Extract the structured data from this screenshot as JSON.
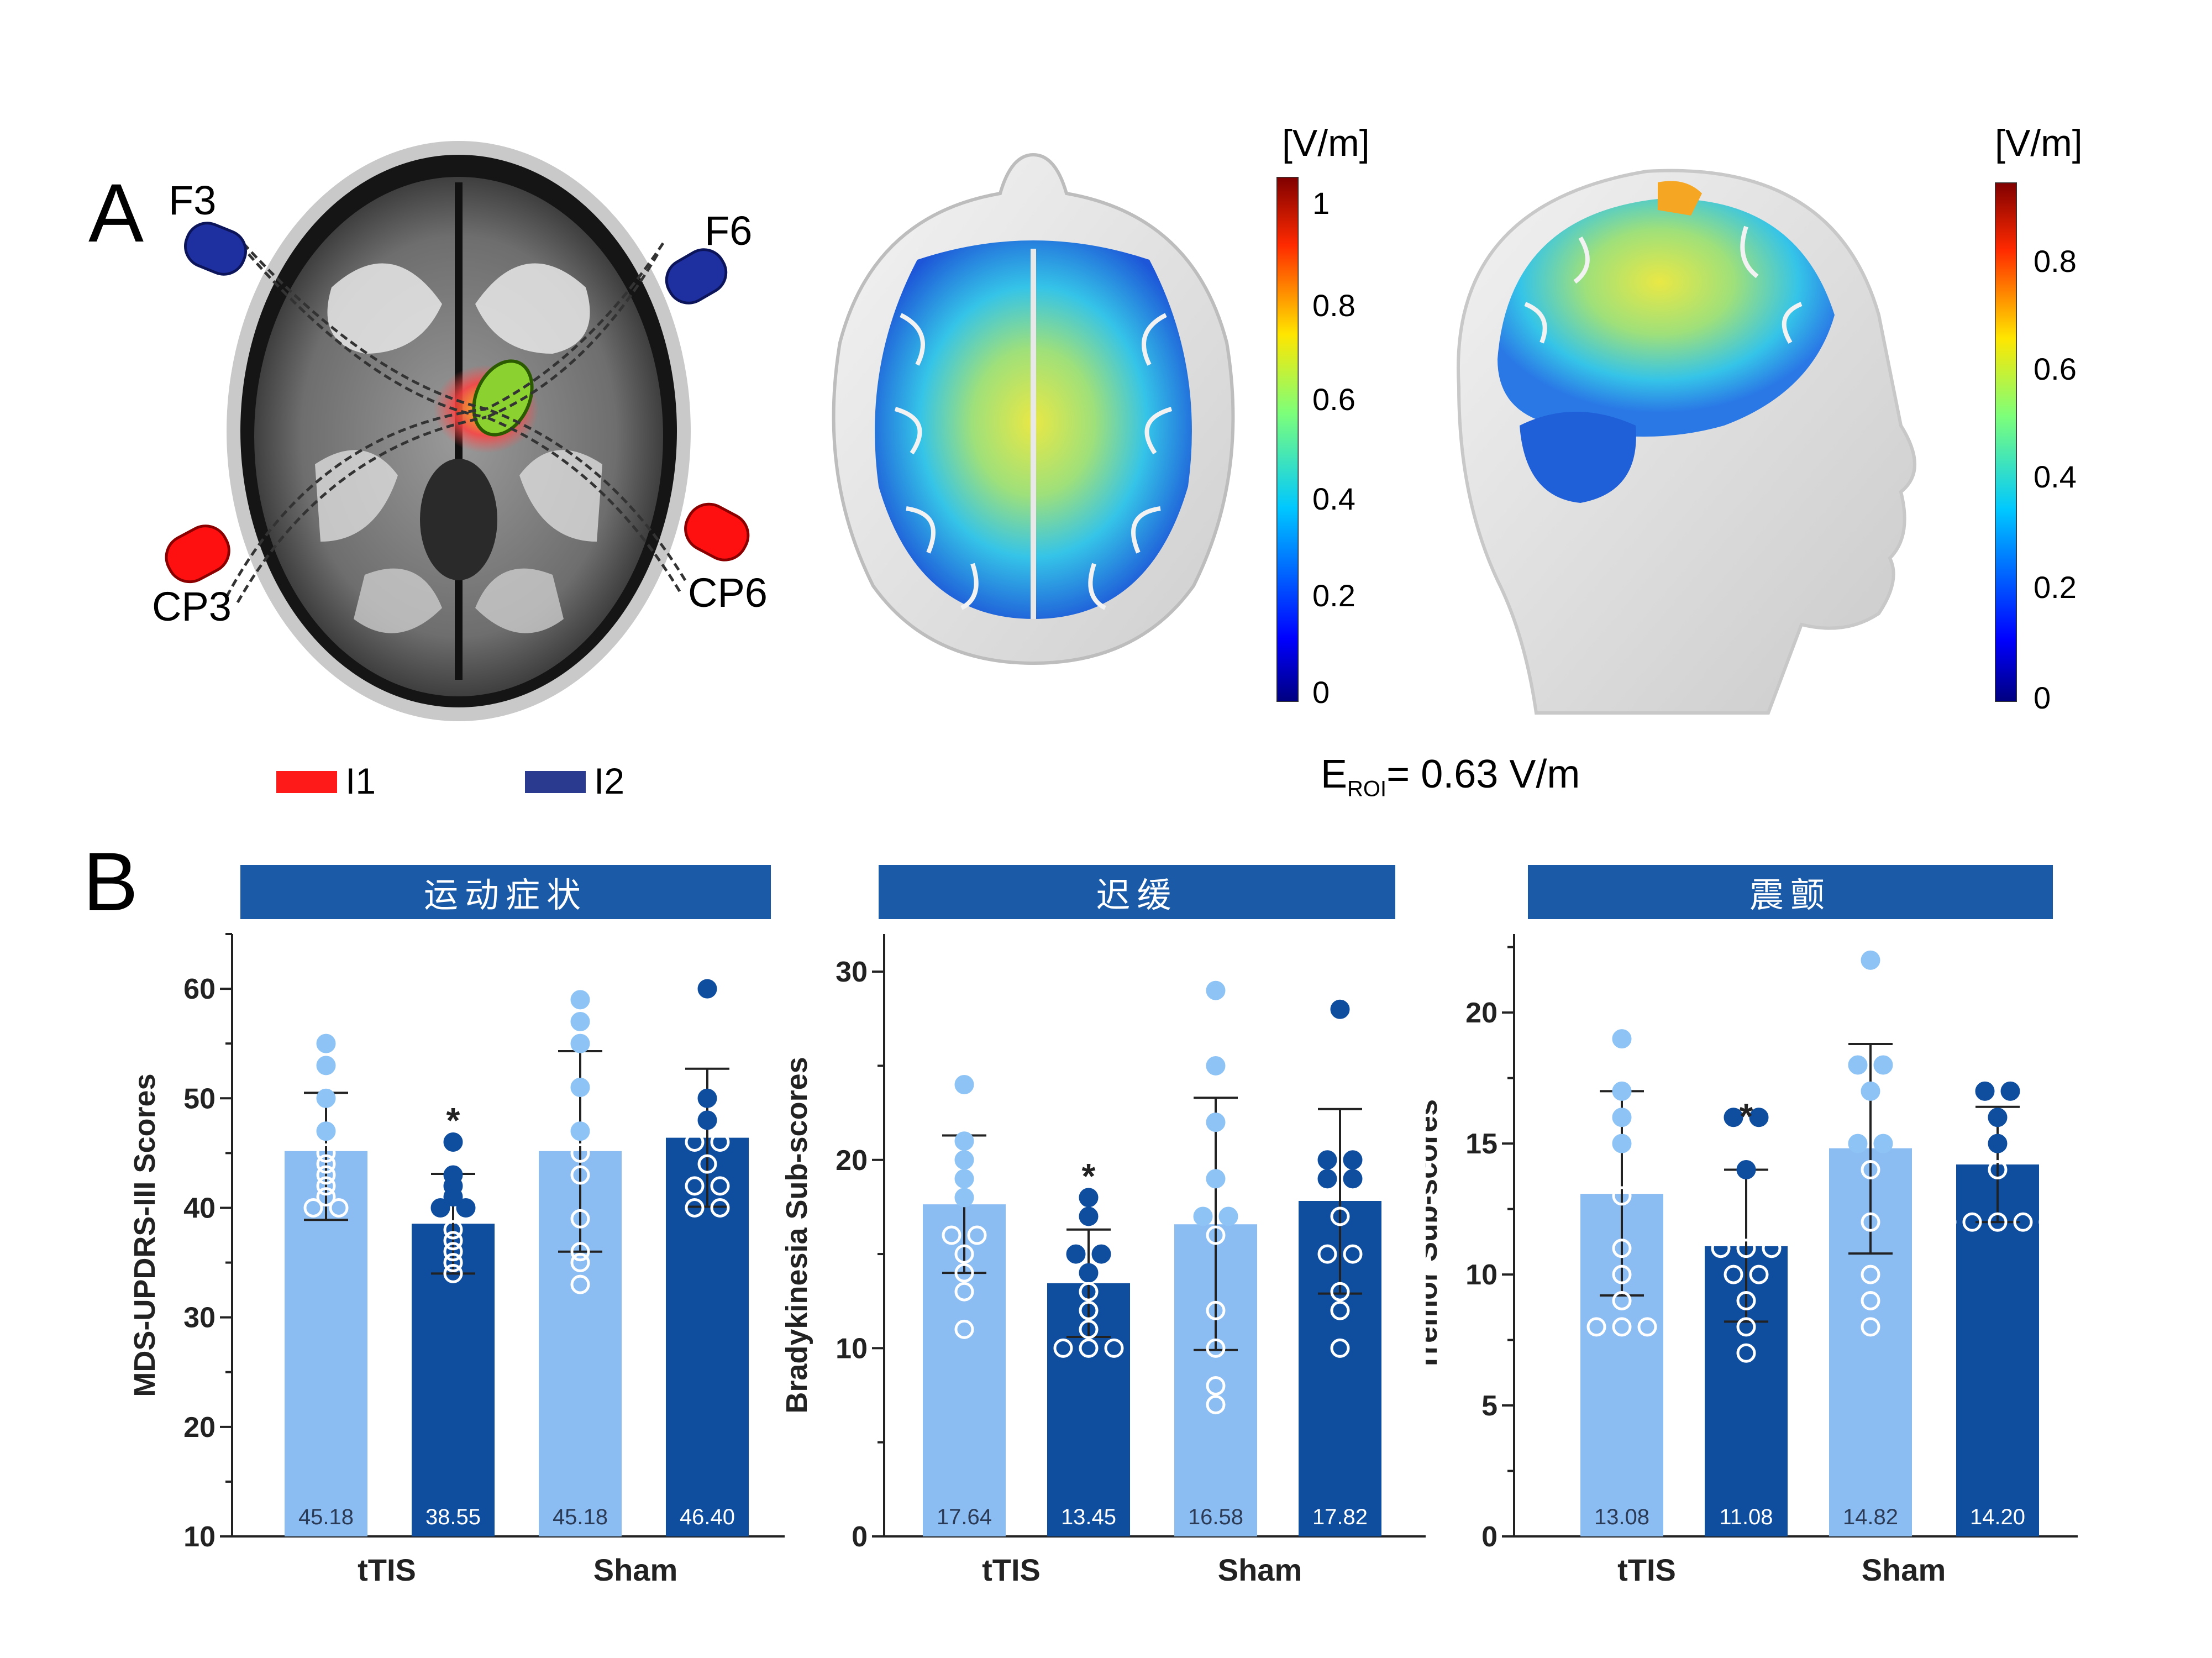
{
  "panel_a": {
    "label": "A",
    "electrodes": {
      "f3": "F3",
      "f6": "F6",
      "cp3": "CP3",
      "cp6": "CP6"
    },
    "legend": [
      {
        "label": "I1",
        "color": "#ff1a1a"
      },
      {
        "label": "I2",
        "color": "#2a3a8f"
      }
    ],
    "colorbar_1": {
      "unit": "[V/m]",
      "ticks": [
        "1",
        "0.8",
        "0.6",
        "0.4",
        "0.2",
        "0"
      ]
    },
    "colorbar_2": {
      "unit": "[V/m]",
      "ticks": [
        "0.8",
        "0.6",
        "0.4",
        "0.2",
        "0"
      ]
    },
    "eroi": {
      "prefix": "E",
      "subscript": "ROI",
      "value": "= 0.63 V/m"
    }
  },
  "panel_b": {
    "label": "B"
  },
  "colors": {
    "light_bar": "#8bbcf2",
    "dark_bar": "#0f4e9e",
    "light_dot": "#8ec4f5",
    "header": "#1b5aa6"
  },
  "chart_data": [
    {
      "type": "bar",
      "title": "运动症状",
      "ylabel": "MDS-UPDRS-III Scores",
      "ylim": [
        10,
        65
      ],
      "yticks": [
        10,
        20,
        30,
        40,
        50,
        60
      ],
      "groups": [
        "tTIS",
        "Sham"
      ],
      "bars": [
        {
          "value": 45.18,
          "label": "45.18",
          "tone": "light",
          "err": [
            38.9,
            50.5
          ],
          "points": [
            55,
            53,
            50,
            47,
            45,
            44,
            43,
            42,
            41,
            40,
            40
          ]
        },
        {
          "value": 38.55,
          "label": "38.55",
          "tone": "dark",
          "err": [
            34.0,
            43.1
          ],
          "star": "*",
          "points": [
            46,
            43,
            42,
            41,
            40,
            40,
            38,
            37,
            36,
            35,
            34
          ]
        },
        {
          "value": 45.18,
          "label": "45.18",
          "tone": "light",
          "err": [
            36.0,
            54.3
          ],
          "points": [
            59,
            57,
            55,
            51,
            47,
            45,
            43,
            39,
            36,
            35,
            33
          ]
        },
        {
          "value": 46.4,
          "label": "46.40",
          "tone": "dark",
          "err": [
            40.1,
            52.7
          ],
          "points": [
            60,
            50,
            48,
            46,
            46,
            44,
            42,
            42,
            40,
            40
          ]
        }
      ]
    },
    {
      "type": "bar",
      "title": "迟缓",
      "ylabel": "Bradykinesia Sub-scores",
      "ylim": [
        0,
        32
      ],
      "yticks": [
        0,
        10,
        20,
        30
      ],
      "groups": [
        "tTIS",
        "Sham"
      ],
      "bars": [
        {
          "value": 17.64,
          "label": "17.64",
          "tone": "light",
          "err": [
            14.0,
            21.3
          ],
          "points": [
            24,
            21,
            20,
            19,
            18,
            16,
            16,
            15,
            14,
            13,
            11
          ]
        },
        {
          "value": 13.45,
          "label": "13.45",
          "tone": "dark",
          "err": [
            10.6,
            16.3
          ],
          "star": "*",
          "points": [
            18,
            17,
            15,
            15,
            14,
            13,
            12,
            11,
            10,
            10,
            10
          ]
        },
        {
          "value": 16.58,
          "label": "16.58",
          "tone": "light",
          "err": [
            9.9,
            23.3
          ],
          "points": [
            29,
            25,
            22,
            19,
            17,
            17,
            16,
            12,
            10,
            8,
            7
          ]
        },
        {
          "value": 17.82,
          "label": "17.82",
          "tone": "dark",
          "err": [
            12.9,
            22.7
          ],
          "points": [
            28,
            20,
            20,
            19,
            19,
            17,
            15,
            15,
            13,
            12,
            10
          ]
        }
      ]
    },
    {
      "type": "bar",
      "title": "震颤",
      "ylabel": "Tremor Sub-scores",
      "ylim": [
        0,
        23
      ],
      "yticks": [
        0,
        5,
        10,
        15,
        20
      ],
      "groups": [
        "tTIS",
        "Sham"
      ],
      "bars": [
        {
          "value": 13.08,
          "label": "13.08",
          "tone": "light",
          "err": [
            9.2,
            17.0
          ],
          "points": [
            19,
            17,
            16,
            15,
            13,
            11,
            10,
            9,
            8,
            8,
            8
          ]
        },
        {
          "value": 11.08,
          "label": "11.08",
          "tone": "dark",
          "err": [
            8.2,
            14.0
          ],
          "star": "*",
          "points": [
            16,
            16,
            14,
            11,
            11,
            11,
            10,
            10,
            9,
            8,
            7
          ]
        },
        {
          "value": 14.82,
          "label": "14.82",
          "tone": "light",
          "err": [
            10.8,
            18.8
          ],
          "points": [
            22,
            18,
            18,
            17,
            15,
            15,
            14,
            12,
            10,
            9,
            8
          ]
        },
        {
          "value": 14.2,
          "label": "14.20",
          "tone": "dark",
          "err": [
            12.0,
            16.4
          ],
          "points": [
            17,
            17,
            16,
            15,
            14,
            12,
            12,
            12,
            12,
            12
          ]
        }
      ]
    }
  ]
}
